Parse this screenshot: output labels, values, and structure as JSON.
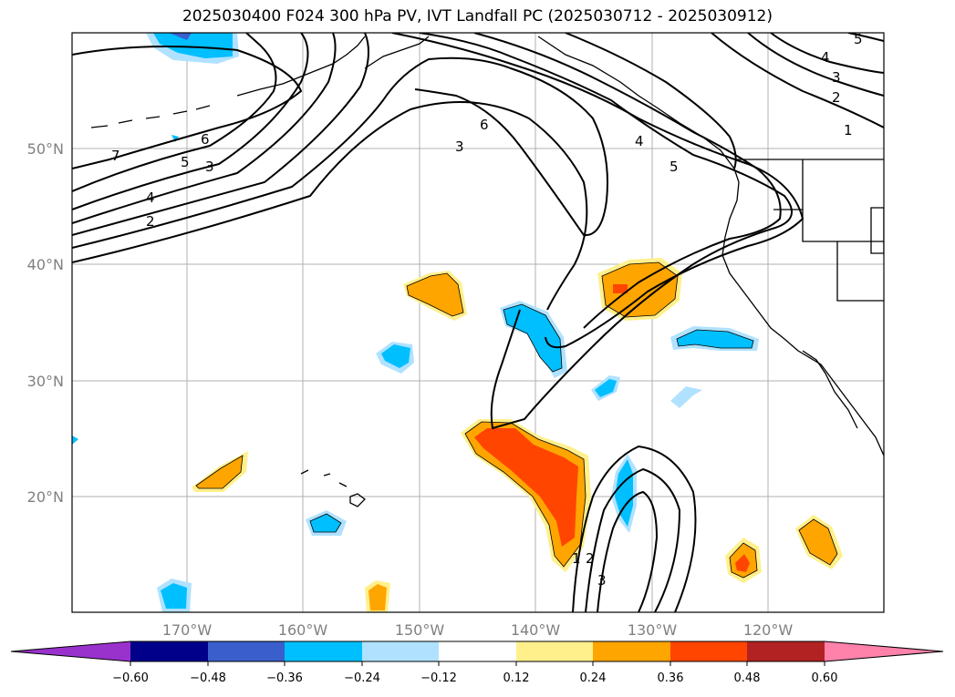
{
  "title": "2025030400 F024 300 hPa PV, IVT Landfall PC (2025030712 - 2025030912)",
  "lat_labels": [
    "50°N",
    "40°N",
    "30°N",
    "20°N"
  ],
  "lon_labels": [
    "170°W",
    "160°W",
    "150°W",
    "140°W",
    "130°W",
    "120°W"
  ],
  "colorbar": {
    "ticks": [
      "−0.60",
      "−0.48",
      "−0.36",
      "−0.24",
      "−0.12",
      "0.12",
      "0.24",
      "0.36",
      "0.48",
      "0.60"
    ],
    "colors": [
      "#9932cc",
      "#00008b",
      "#3a5fcd",
      "#00bfff",
      "#b0e2ff",
      "#ffffff",
      "#fff08c",
      "#ffa500",
      "#ff4500",
      "#b22222",
      "#ff82ab"
    ]
  },
  "contour_labels": [
    "7",
    "6",
    "5",
    "3",
    "4",
    "2",
    "6",
    "3",
    "4",
    "5",
    "4",
    "3",
    "2",
    "1",
    "5",
    "1",
    "2",
    "3"
  ]
}
